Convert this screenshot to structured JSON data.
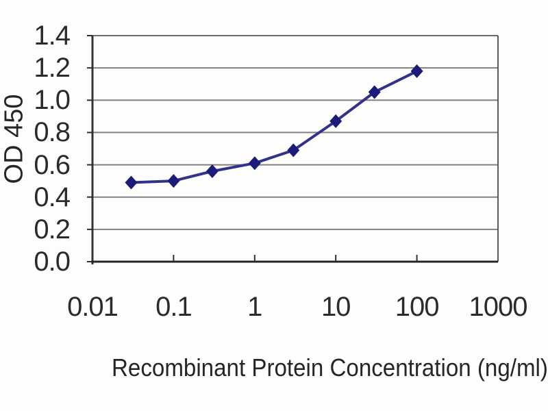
{
  "chart_data": {
    "type": "line",
    "title": "",
    "xlabel": "Recombinant Protein Concentration (ng/ml)",
    "ylabel": "OD 450",
    "x_scale": "log",
    "xlim": [
      0.01,
      1000
    ],
    "ylim": [
      0,
      1.4
    ],
    "x_ticks": [
      0.01,
      0.1,
      1,
      10,
      100,
      1000
    ],
    "x_tick_labels": [
      "0.01",
      "0.1",
      "1",
      "10",
      "100",
      "1000"
    ],
    "y_ticks": [
      0,
      0.2,
      0.4,
      0.6,
      0.8,
      1,
      1.2,
      1.4
    ],
    "y_tick_labels": [
      "0.0",
      "0.2",
      "0.4",
      "0.6",
      "0.8",
      "1.0",
      "1.2",
      "1.4"
    ],
    "grid": true,
    "legend": false,
    "marker": "diamond",
    "series": [
      {
        "name": "OD 450",
        "x": [
          0.03,
          0.1,
          0.3,
          1,
          3,
          10,
          30,
          100
        ],
        "y": [
          0.49,
          0.5,
          0.56,
          0.61,
          0.69,
          0.87,
          1.05,
          1.18
        ]
      }
    ],
    "line_color": "#32328c",
    "marker_color": "#1c1c78",
    "grid_color": "#808080",
    "axis_color": "#2e2e2e",
    "background": "#fdfdfc"
  }
}
